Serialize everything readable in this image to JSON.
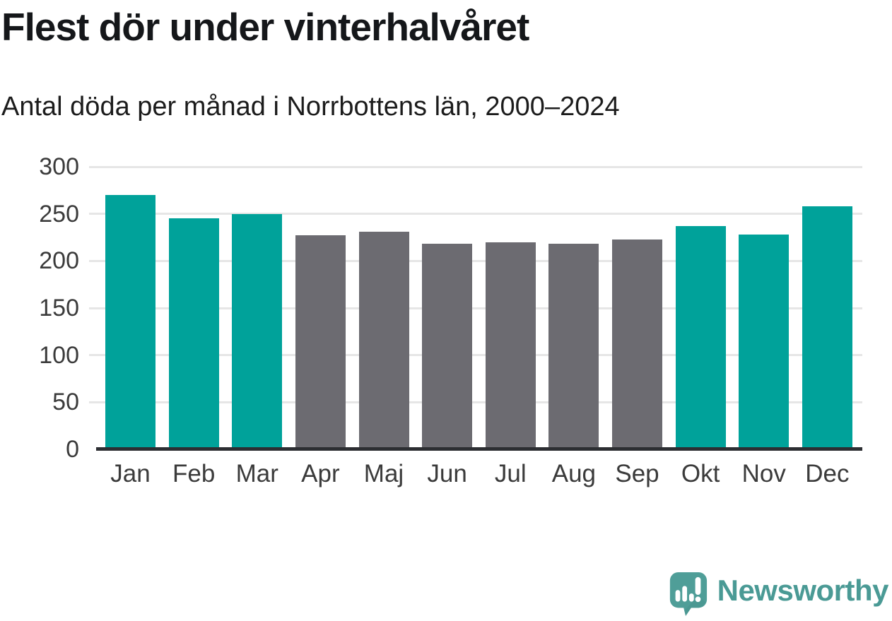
{
  "header": {
    "title": "Flest dör under vinterhalvåret",
    "subtitle": "Antal döda per månad i Norrbottens län, 2000–2024"
  },
  "chart_data": {
    "type": "bar",
    "title": "Flest dör under vinterhalvåret",
    "subtitle": "Antal döda per månad i Norrbottens län, 2000–2024",
    "categories": [
      "Jan",
      "Feb",
      "Mar",
      "Apr",
      "Maj",
      "Jun",
      "Jul",
      "Aug",
      "Sep",
      "Okt",
      "Nov",
      "Dec"
    ],
    "values": [
      270,
      245,
      250,
      227,
      231,
      218,
      220,
      218,
      223,
      237,
      228,
      258
    ],
    "bar_groups": [
      "winter",
      "winter",
      "winter",
      "summer",
      "summer",
      "summer",
      "summer",
      "summer",
      "summer",
      "winter",
      "winter",
      "winter"
    ],
    "group_colors": {
      "winter": "#00a29a",
      "summer": "#6c6b71"
    },
    "xlabel": "",
    "ylabel": "",
    "ylim": [
      0,
      300
    ],
    "yticks": [
      0,
      50,
      100,
      150,
      200,
      250,
      300
    ],
    "grid": true,
    "gridline_color": "#e6e6e6",
    "axis_line_color": "#2c2e32",
    "legend": "none"
  },
  "footer": {
    "brand": "Newsworthy",
    "brand_color": "#4a9a95",
    "logo_icon": "speech-bubble-with-bar-chart-and-exclamation"
  }
}
